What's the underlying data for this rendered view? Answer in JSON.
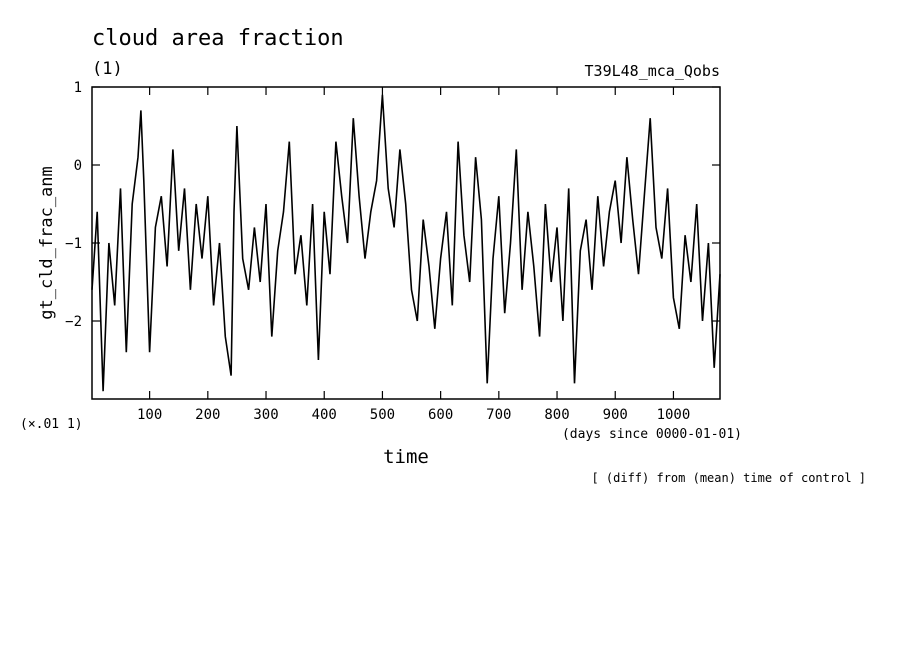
{
  "chart_data": {
    "type": "line",
    "title": "cloud area fraction",
    "subtitle_left": "(1)",
    "subtitle_right": "T39L48_mca_Qobs",
    "ylabel": "gt_cld_frac_anm",
    "xlabel": "time",
    "x_units": "(days since 0000-01-01)",
    "y_scale_note": "(×.01 1)",
    "footnote": "[ (diff) from (mean) time of control ]",
    "xlim": [
      1,
      1080
    ],
    "ylim": [
      -3,
      1
    ],
    "x_ticks": [
      100,
      200,
      300,
      400,
      500,
      600,
      700,
      800,
      900,
      1000
    ],
    "y_ticks": [
      1,
      0,
      -1,
      -2
    ],
    "y_tick_labels": [
      "1",
      "0",
      "−1",
      "−2"
    ],
    "grid": false,
    "legend": "none",
    "series": [
      {
        "x": [
          1,
          10,
          20,
          30,
          40,
          50,
          60,
          70,
          80,
          85,
          90,
          100,
          110,
          120,
          130,
          140,
          150,
          160,
          170,
          180,
          190,
          200,
          210,
          220,
          230,
          240,
          245,
          250,
          260,
          270,
          280,
          290,
          300,
          310,
          320,
          330,
          340,
          350,
          360,
          370,
          380,
          390,
          400,
          410,
          420,
          430,
          440,
          450,
          460,
          470,
          480,
          490,
          500,
          510,
          520,
          530,
          540,
          550,
          560,
          570,
          580,
          590,
          600,
          610,
          620,
          630,
          640,
          650,
          660,
          670,
          680,
          690,
          700,
          710,
          720,
          730,
          740,
          750,
          760,
          770,
          780,
          790,
          800,
          810,
          820,
          830,
          840,
          850,
          860,
          870,
          880,
          890,
          900,
          910,
          920,
          930,
          940,
          950,
          960,
          970,
          980,
          990,
          1000,
          1010,
          1020,
          1030,
          1040,
          1050,
          1060,
          1070,
          1080
        ],
        "y": [
          -1.6,
          -0.6,
          -2.9,
          -1.0,
          -1.8,
          -0.3,
          -2.4,
          -0.5,
          0.1,
          0.7,
          -0.2,
          -2.4,
          -0.8,
          -0.4,
          -1.3,
          0.2,
          -1.1,
          -0.3,
          -1.6,
          -0.5,
          -1.2,
          -0.4,
          -1.8,
          -1.0,
          -2.2,
          -2.7,
          -0.6,
          0.5,
          -1.2,
          -1.6,
          -0.8,
          -1.5,
          -0.5,
          -2.2,
          -1.1,
          -0.6,
          0.3,
          -1.4,
          -0.9,
          -1.8,
          -0.5,
          -2.5,
          -0.6,
          -1.4,
          0.3,
          -0.4,
          -1.0,
          0.6,
          -0.4,
          -1.2,
          -0.6,
          -0.2,
          0.9,
          -0.3,
          -0.8,
          0.2,
          -0.5,
          -1.6,
          -2.0,
          -0.7,
          -1.3,
          -2.1,
          -1.2,
          -0.6,
          -1.8,
          0.3,
          -0.9,
          -1.5,
          0.1,
          -0.7,
          -2.8,
          -1.2,
          -0.4,
          -1.9,
          -1.0,
          0.2,
          -1.6,
          -0.6,
          -1.3,
          -2.2,
          -0.5,
          -1.5,
          -0.8,
          -2.0,
          -0.3,
          -2.8,
          -1.1,
          -0.7,
          -1.6,
          -0.4,
          -1.3,
          -0.6,
          -0.2,
          -1.0,
          0.1,
          -0.7,
          -1.4,
          -0.4,
          0.6,
          -0.8,
          -1.2,
          -0.3,
          -1.7,
          -2.1,
          -0.9,
          -1.5,
          -0.5,
          -2.0,
          -1.0,
          -2.6,
          -1.4
        ]
      }
    ]
  }
}
